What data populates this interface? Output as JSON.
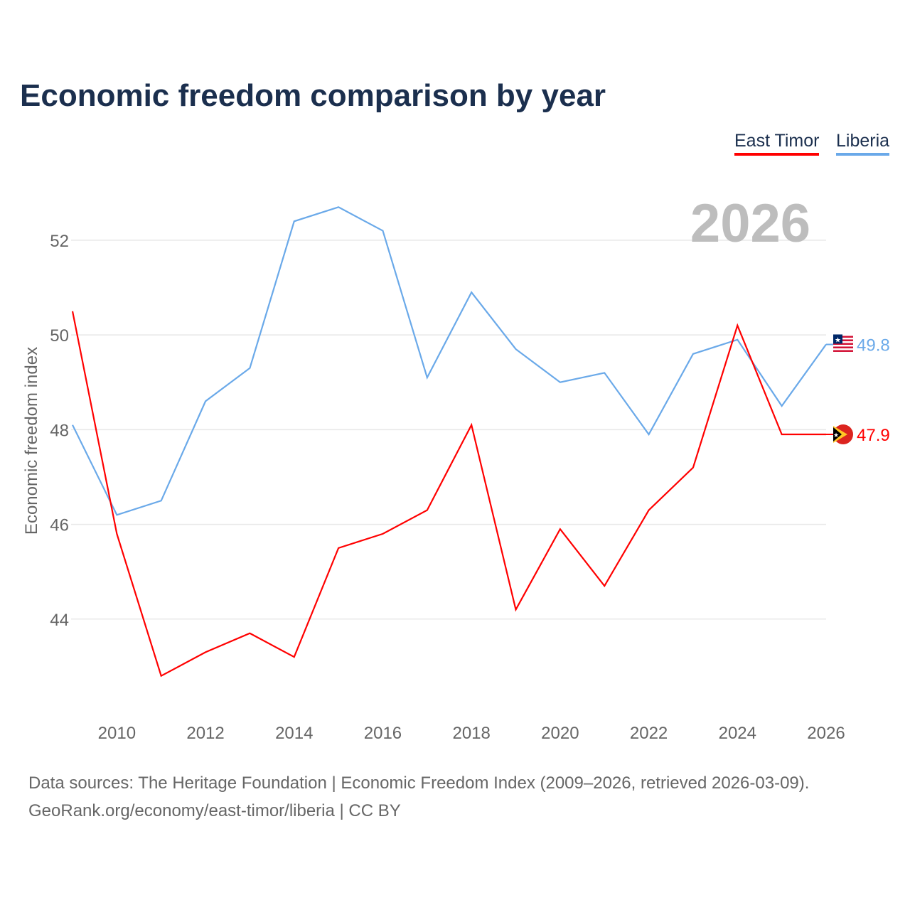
{
  "title": "Economic freedom comparison by year",
  "legend": [
    {
      "label": "East Timor",
      "color": "#ff0000"
    },
    {
      "label": "Liberia",
      "color": "#6aa9e9"
    }
  ],
  "year_watermark": "2026",
  "footer": {
    "line1": "Data sources: The Heritage Foundation | Economic Freedom Index (2009–2026, retrieved 2026-03-09).",
    "line2": "GeoRank.org/economy/east-timor/liberia | CC BY"
  },
  "chart_data": {
    "type": "line",
    "title": "Economic freedom comparison by year",
    "xlabel": "",
    "ylabel": "Economic freedom index",
    "x": [
      2009,
      2010,
      2011,
      2012,
      2013,
      2014,
      2015,
      2016,
      2017,
      2018,
      2019,
      2020,
      2021,
      2022,
      2023,
      2024,
      2025,
      2026
    ],
    "xlim": [
      2009,
      2026
    ],
    "ylim": [
      42,
      53.5
    ],
    "xticks": [
      "2010",
      "2012",
      "2014",
      "2016",
      "2018",
      "2020",
      "2022",
      "2024",
      "2026"
    ],
    "yticks": [
      "44",
      "46",
      "48",
      "50",
      "52"
    ],
    "grid": true,
    "legend_position": "top-right",
    "series": [
      {
        "name": "East Timor",
        "color": "#ff0000",
        "end_label": "47.9",
        "values": [
          50.5,
          45.8,
          42.8,
          43.3,
          43.7,
          43.2,
          45.5,
          45.8,
          46.3,
          48.1,
          44.2,
          45.9,
          44.7,
          46.3,
          47.2,
          50.2,
          47.9,
          47.9
        ]
      },
      {
        "name": "Liberia",
        "color": "#6aa9e9",
        "end_label": "49.8",
        "values": [
          48.1,
          46.2,
          46.5,
          48.6,
          49.3,
          52.4,
          52.7,
          52.2,
          49.1,
          50.9,
          49.7,
          49.0,
          49.2,
          47.9,
          49.6,
          49.9,
          48.5,
          49.8
        ]
      }
    ]
  }
}
